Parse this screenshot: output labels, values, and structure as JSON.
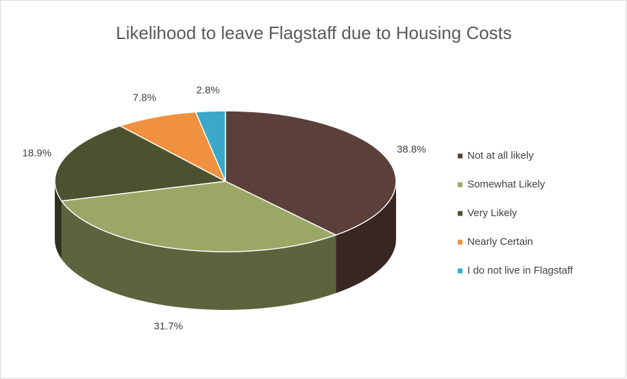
{
  "chart_data": {
    "type": "pie",
    "title": "Likelihood to leave Flagstaff due to Housing Costs",
    "categories": [
      "Not at all likely",
      "Somewhat Likely",
      "Very Likely",
      "Nearly Certain",
      "I do not live in Flagstaff"
    ],
    "values": [
      38.8,
      31.7,
      18.9,
      7.8,
      2.8
    ],
    "value_labels": [
      "38.8%",
      "31.7%",
      "18.9%",
      "7.8%",
      "2.8%"
    ],
    "colors": [
      "#5b4039",
      "#9aa766",
      "#4c5230",
      "#f0913f",
      "#3aa8c8"
    ],
    "legend": "right"
  }
}
